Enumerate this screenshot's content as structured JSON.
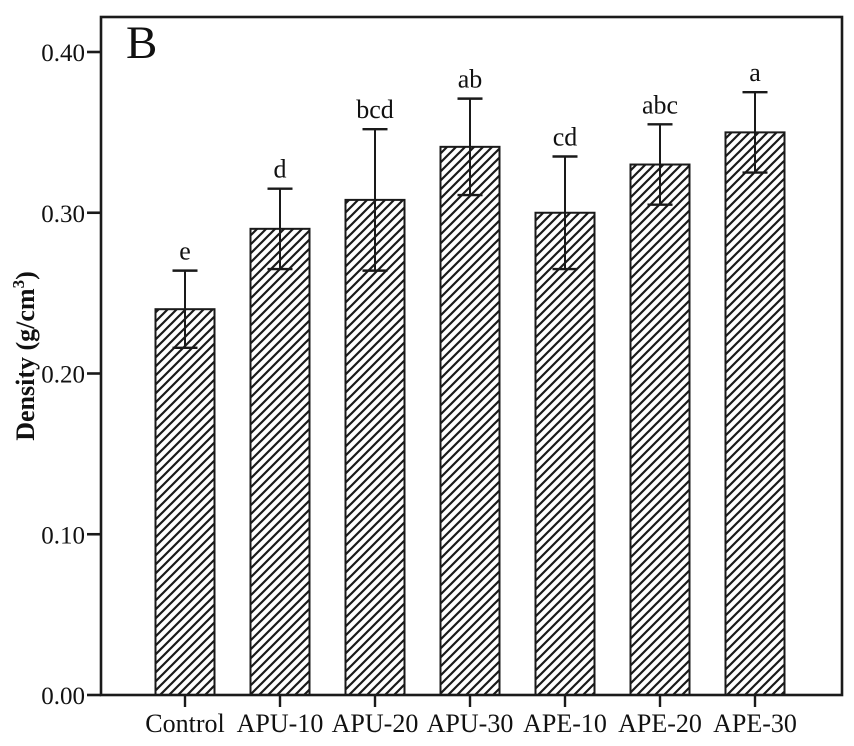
{
  "ylabel_parts": {
    "prefix": "Density (g/cm",
    "superscript": "3",
    "suffix": ")"
  },
  "chart_data": {
    "type": "bar",
    "title": "",
    "panel_label": "B",
    "ylabel": "Density (g/cm³)",
    "xlabel": "",
    "categories": [
      "Control",
      "APU-10",
      "APU-20",
      "APU-30",
      "APE-10",
      "APE-20",
      "APE-30"
    ],
    "series": [
      {
        "name": "Density",
        "values": [
          0.24,
          0.29,
          0.308,
          0.341,
          0.3,
          0.33,
          0.35
        ]
      }
    ],
    "errors": [
      0.024,
      0.025,
      0.044,
      0.03,
      0.035,
      0.025,
      0.025
    ],
    "significance_letters": [
      "e",
      "d",
      "bcd",
      "ab",
      "cd",
      "abc",
      "a"
    ],
    "ytick_labels": [
      "0.00",
      "0.10",
      "0.20",
      "0.30",
      "0.40"
    ],
    "ytick_values": [
      0.0,
      0.1,
      0.2,
      0.3,
      0.4
    ],
    "ylim": [
      0,
      0.422
    ],
    "grid": false,
    "legend": "none",
    "bar_style": "diagonal-hatch",
    "bar_fill_background": "#ffffff",
    "hatch_color": "#1a1a1a",
    "bar_edge_color": "#1a1a1a",
    "axis_color": "#1a1a1a"
  }
}
